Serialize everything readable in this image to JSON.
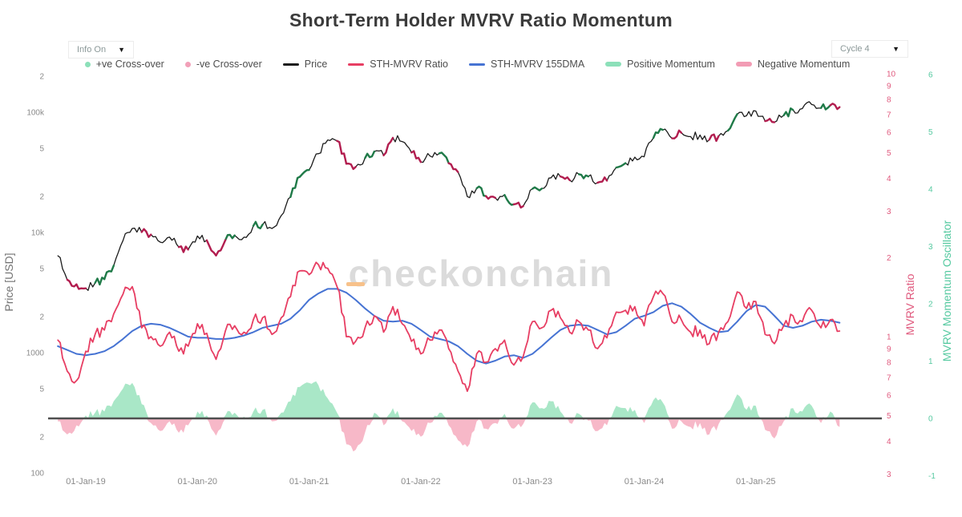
{
  "header": {
    "title": "Short-Term Holder MVRV Ratio Momentum"
  },
  "controls": {
    "info_dropdown": {
      "label": "Info On",
      "caret": "▼"
    },
    "cycle_dropdown": {
      "label": "Cycle 4",
      "caret": "▼"
    }
  },
  "legend": {
    "items": [
      {
        "label": "+ve Cross-over",
        "marker": "dot",
        "color": "#8ce0b9"
      },
      {
        "label": "-ve Cross-over",
        "marker": "dot",
        "color": "#f2a0b8"
      },
      {
        "label": "Price",
        "marker": "line",
        "color": "#1b1b1b"
      },
      {
        "label": "STH-MVRV Ratio",
        "marker": "line",
        "color": "#e73e63"
      },
      {
        "label": "STH-MVRV 155DMA",
        "marker": "line",
        "color": "#4673d3"
      },
      {
        "label": "Positive Momentum",
        "marker": "bar",
        "color": "#8ce0b9"
      },
      {
        "label": "Negative Momentum",
        "marker": "bar",
        "color": "#f29cb4"
      }
    ]
  },
  "watermark": {
    "text": "checkonchain"
  },
  "colors": {
    "price": "#1b1b1b",
    "mvrv": "#e73e63",
    "dma": "#4673d3",
    "pos_fill": "#a9e7c7",
    "neg_fill": "#f7b8c8",
    "pos_cross": "#1f7a48",
    "neg_cross": "#b21d4f",
    "zero_line": "#4f4f4f",
    "axis_text": "#8a8a8a",
    "mvrv_axis_text": "#e05a7e",
    "osc_axis_text": "#55c9a0",
    "watermark": "#dbdbdb",
    "watermark_dash": "#f7c18a"
  },
  "chart_data": {
    "type": "line",
    "title": "Short-Term Holder MVRV Ratio Momentum",
    "x_interval": "monthly",
    "x_start": "2018-10",
    "x_end": "2025-10",
    "x_tick_labels": [
      "01-Jan-19",
      "01-Jan-20",
      "01-Jan-21",
      "01-Jan-22",
      "01-Jan-23",
      "01-Jan-24",
      "01-Jan-25"
    ],
    "grid": false,
    "legend_position": "top",
    "axes": {
      "price": {
        "title": "Price [USD]",
        "scale": "log",
        "side": "left",
        "range": [
          100,
          200000
        ],
        "ticks": [
          {
            "v": 200000,
            "l": "2"
          },
          {
            "v": 100000,
            "l": "100k"
          },
          {
            "v": 50000,
            "l": "5"
          },
          {
            "v": 20000,
            "l": "2"
          },
          {
            "v": 10000,
            "l": "10k"
          },
          {
            "v": 5000,
            "l": "5"
          },
          {
            "v": 2000,
            "l": "2"
          },
          {
            "v": 1000,
            "l": "1000"
          },
          {
            "v": 500,
            "l": "5"
          },
          {
            "v": 200,
            "l": "2"
          },
          {
            "v": 100,
            "l": "100"
          }
        ]
      },
      "mvrv": {
        "title": "MVRV Ratio",
        "scale": "log",
        "side": "right",
        "range": [
          0.28,
          10
        ],
        "ticks": [
          {
            "v": 10,
            "l": "10"
          },
          {
            "v": 9,
            "l": "9"
          },
          {
            "v": 8,
            "l": "8"
          },
          {
            "v": 7,
            "l": "7"
          },
          {
            "v": 6,
            "l": "6"
          },
          {
            "v": 5,
            "l": "5"
          },
          {
            "v": 4,
            "l": "4"
          },
          {
            "v": 3,
            "l": "3"
          },
          {
            "v": 2,
            "l": "2"
          },
          {
            "v": 1,
            "l": "1"
          },
          {
            "v": 0.9,
            "l": "9"
          },
          {
            "v": 0.8,
            "l": "8"
          },
          {
            "v": 0.7,
            "l": "7"
          },
          {
            "v": 0.6,
            "l": "6"
          },
          {
            "v": 0.5,
            "l": "5"
          },
          {
            "v": 0.4,
            "l": "4"
          },
          {
            "v": 0.3,
            "l": "3"
          }
        ]
      },
      "osc": {
        "title": "MVRV Momentum Oscillator",
        "scale": "linear",
        "side": "right",
        "range": [
          -1.5,
          6
        ],
        "ticks": [
          6,
          5,
          4,
          3,
          2,
          1,
          0,
          -1
        ]
      }
    },
    "series": [
      {
        "name": "Price",
        "axis": "price",
        "color_key": "price",
        "values": [
          6400,
          4050,
          3700,
          3430,
          3800,
          4090,
          5300,
          8550,
          10800,
          10080,
          9600,
          8300,
          9150,
          7550,
          7200,
          9350,
          8600,
          6440,
          8630,
          9450,
          9140,
          11350,
          11650,
          10780,
          13800,
          19700,
          29000,
          33100,
          45200,
          58800,
          57750,
          37300,
          35050,
          41500,
          47150,
          43800,
          61300,
          57000,
          46200,
          38500,
          43200,
          45500,
          37650,
          31800,
          19900,
          23300,
          20050,
          19400,
          20500,
          17150,
          16550,
          23100,
          23150,
          28500,
          29250,
          27200,
          30480,
          29230,
          25950,
          26970,
          34650,
          37700,
          42280,
          42580,
          61200,
          71330,
          60640,
          67530,
          62680,
          64620,
          59110,
          63330,
          70220,
          96400,
          93430,
          102400,
          84380,
          82550,
          94210,
          104600,
          107140,
          115800,
          108240,
          114050,
          110100
        ]
      },
      {
        "name": "STH-MVRV Ratio",
        "axis": "mvrv",
        "color_key": "mvrv",
        "values": [
          0.97,
          0.74,
          0.68,
          0.88,
          1.02,
          1.06,
          1.22,
          1.45,
          1.55,
          1.08,
          1.0,
          0.92,
          1.04,
          0.88,
          0.92,
          1.12,
          1.03,
          0.82,
          1.05,
          1.1,
          1.04,
          1.16,
          1.18,
          1.02,
          1.18,
          1.42,
          1.78,
          1.72,
          1.88,
          1.82,
          1.55,
          1.0,
          0.96,
          1.08,
          1.2,
          1.04,
          1.3,
          1.12,
          0.96,
          0.86,
          0.97,
          1.06,
          0.9,
          0.74,
          0.62,
          0.86,
          0.8,
          0.9,
          0.97,
          0.78,
          0.84,
          1.14,
          1.08,
          1.26,
          1.18,
          1.04,
          1.14,
          1.06,
          0.9,
          0.99,
          1.24,
          1.26,
          1.3,
          1.1,
          1.42,
          1.46,
          1.14,
          1.16,
          1.04,
          1.06,
          0.94,
          1.04,
          1.14,
          1.48,
          1.28,
          1.36,
          1.02,
          0.94,
          1.1,
          1.2,
          1.14,
          1.26,
          1.08,
          1.16,
          1.05
        ]
      },
      {
        "name": "STH-MVRV 155DMA",
        "axis": "mvrv",
        "color_key": "dma",
        "values": [
          0.92,
          0.89,
          0.86,
          0.85,
          0.86,
          0.88,
          0.92,
          0.98,
          1.05,
          1.1,
          1.12,
          1.11,
          1.08,
          1.04,
          1.0,
          0.99,
          0.99,
          0.98,
          0.98,
          0.99,
          1.01,
          1.04,
          1.08,
          1.1,
          1.12,
          1.17,
          1.26,
          1.38,
          1.46,
          1.52,
          1.52,
          1.47,
          1.38,
          1.28,
          1.2,
          1.15,
          1.14,
          1.15,
          1.12,
          1.06,
          1.0,
          0.98,
          0.96,
          0.92,
          0.86,
          0.81,
          0.79,
          0.81,
          0.84,
          0.85,
          0.83,
          0.86,
          0.92,
          0.99,
          1.06,
          1.1,
          1.11,
          1.1,
          1.06,
          1.02,
          1.04,
          1.1,
          1.17,
          1.2,
          1.24,
          1.31,
          1.34,
          1.3,
          1.22,
          1.13,
          1.08,
          1.04,
          1.05,
          1.14,
          1.25,
          1.32,
          1.3,
          1.2,
          1.1,
          1.08,
          1.1,
          1.14,
          1.16,
          1.15,
          1.13
        ]
      },
      {
        "name": "Momentum Oscillator",
        "axis": "osc",
        "color_key": "pos_fill",
        "values": [
          -0.05,
          -0.28,
          -0.12,
          0.05,
          0.1,
          0.12,
          0.3,
          0.52,
          0.62,
          0.25,
          -0.08,
          -0.22,
          -0.05,
          -0.25,
          -0.12,
          0.12,
          0.05,
          -0.3,
          0.05,
          0.1,
          0.03,
          0.12,
          0.15,
          -0.05,
          0.1,
          0.3,
          0.55,
          0.62,
          0.58,
          0.35,
          0.1,
          -0.45,
          -0.55,
          -0.25,
          0.1,
          -0.12,
          0.18,
          -0.05,
          -0.22,
          -0.32,
          -0.08,
          0.1,
          -0.12,
          -0.38,
          -0.5,
          -0.05,
          -0.18,
          -0.08,
          0.08,
          -0.18,
          -0.1,
          0.28,
          0.18,
          0.3,
          0.12,
          -0.08,
          0.08,
          -0.04,
          -0.22,
          -0.12,
          0.22,
          0.18,
          0.15,
          -0.08,
          0.32,
          0.28,
          -0.18,
          -0.05,
          -0.15,
          -0.08,
          -0.28,
          -0.1,
          0.12,
          0.42,
          0.15,
          0.22,
          -0.2,
          -0.35,
          -0.05,
          0.18,
          0.12,
          0.22,
          -0.08,
          0.12,
          -0.15
        ]
      }
    ],
    "crossovers": {
      "positive_month_indices": [
        4,
        5,
        18,
        21,
        25,
        26,
        33,
        41,
        45,
        48,
        51,
        56,
        60,
        64,
        72,
        78,
        82
      ],
      "negative_month_indices": [
        1,
        2,
        9,
        13,
        16,
        17,
        30,
        31,
        35,
        38,
        42,
        46,
        49,
        54,
        58,
        66,
        70,
        76,
        83
      ]
    }
  }
}
